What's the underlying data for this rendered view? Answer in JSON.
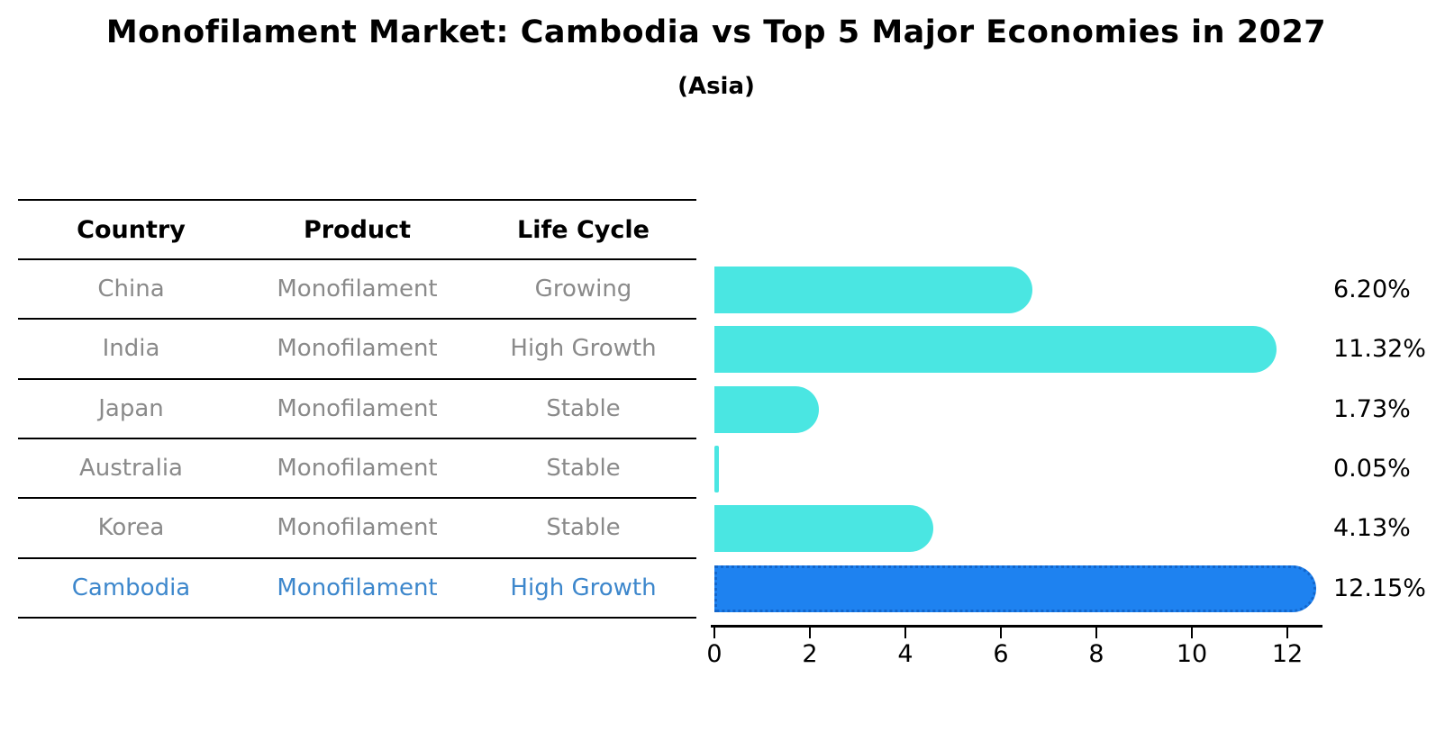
{
  "title": "Monofilament Market: Cambodia vs Top 5 Major Economies in 2027",
  "subtitle": "(Asia)",
  "table": {
    "headers": [
      "Country",
      "Product",
      "Life Cycle"
    ],
    "rows": [
      {
        "country": "China",
        "product": "Monofilament",
        "life_cycle": "Growing",
        "highlight": false
      },
      {
        "country": "India",
        "product": "Monofilament",
        "life_cycle": "High Growth",
        "highlight": false
      },
      {
        "country": "Japan",
        "product": "Monofilament",
        "life_cycle": "Stable",
        "highlight": false
      },
      {
        "country": "Australia",
        "product": "Monofilament",
        "life_cycle": "Stable",
        "highlight": false
      },
      {
        "country": "Korea",
        "product": "Monofilament",
        "life_cycle": "Stable",
        "highlight": false
      },
      {
        "country": "Cambodia",
        "product": "Monofilament",
        "life_cycle": "High Growth",
        "highlight": true
      }
    ]
  },
  "chart_data": {
    "type": "bar",
    "orientation": "horizontal",
    "categories": [
      "China",
      "India",
      "Japan",
      "Australia",
      "Korea",
      "Cambodia"
    ],
    "values": [
      6.2,
      11.32,
      1.73,
      0.05,
      4.13,
      12.15
    ],
    "value_labels": [
      "6.20%",
      "11.32%",
      "1.73%",
      "0.05%",
      "4.13%",
      "12.15%"
    ],
    "x_ticks": [
      "0",
      "2",
      "4",
      "6",
      "8",
      "10",
      "12"
    ],
    "xlim": [
      0,
      12.7
    ],
    "grid": false,
    "legend": "none",
    "bar_color": "#4AE6E2",
    "highlight_color": "#1E82F0",
    "highlight_index": 5
  },
  "colors": {
    "row_text": "#8a8a8a",
    "highlight_text": "#3d87cc",
    "axis": "#000000",
    "background": "#ffffff"
  }
}
